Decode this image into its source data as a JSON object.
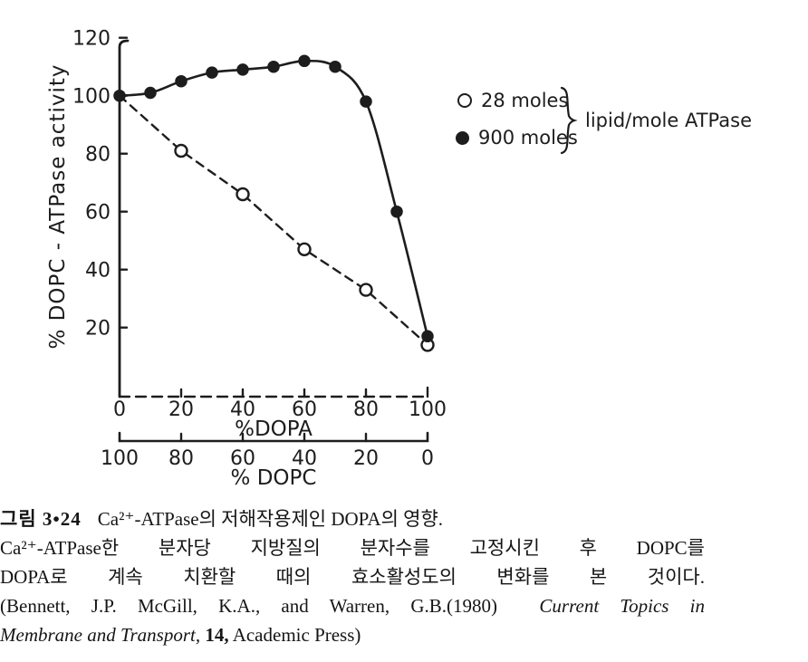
{
  "page": {
    "background": "#ffffff",
    "ink": "#1d1d1d"
  },
  "chart_data": {
    "type": "line",
    "title": "",
    "ylabel": "% DOPC - ATPase activity",
    "ylim": [
      0,
      120
    ],
    "yticks": [
      20,
      40,
      60,
      80,
      100,
      120
    ],
    "grid": false,
    "x_axes": [
      {
        "label": "%DOPA",
        "ticks": [
          0,
          20,
          40,
          60,
          80,
          100
        ],
        "style": "dashed"
      },
      {
        "label": "% DOPC",
        "ticks": [
          100,
          80,
          60,
          40,
          20,
          0
        ],
        "style": "solid"
      }
    ],
    "series": [
      {
        "name": "28 moles",
        "marker": "open-circle",
        "line": "dashed",
        "x": [
          0,
          20,
          40,
          60,
          80,
          100
        ],
        "y": [
          100,
          81,
          66,
          47,
          33,
          14
        ]
      },
      {
        "name": "900 moles",
        "marker": "filled-circle",
        "line": "solid",
        "x": [
          0,
          10,
          20,
          30,
          40,
          50,
          60,
          70,
          80,
          90,
          100
        ],
        "y": [
          100,
          101,
          105,
          108,
          109,
          110,
          112,
          110,
          98,
          60,
          17
        ]
      }
    ],
    "legend": {
      "position": "right",
      "items": [
        {
          "marker": "open-circle",
          "label": "28 moles"
        },
        {
          "marker": "filled-circle",
          "label": "900 moles"
        }
      ],
      "brace_note": "lipid/mole ATPase"
    }
  },
  "caption": {
    "fig_label": "그림 3•24",
    "title": "Ca²⁺-ATPase의 저해작용제인 DOPA의 영향.",
    "line2": "Ca²⁺-ATPase한 분자당 지방질의 분자수를 고정시킨 후 DOPC를",
    "line3": "DOPA로 계속 치환할 때의 효소활성도의 변화를 본 것이다.",
    "ref_pre": "(Bennett, J.P. McGill, K.A., and Warren, G.B.(1980)  ",
    "ref_italic1": "Current Topics in",
    "ref_italic2": "Membrane and Transport,",
    "ref_volume": " 14,",
    "ref_post": " Academic Press)"
  }
}
